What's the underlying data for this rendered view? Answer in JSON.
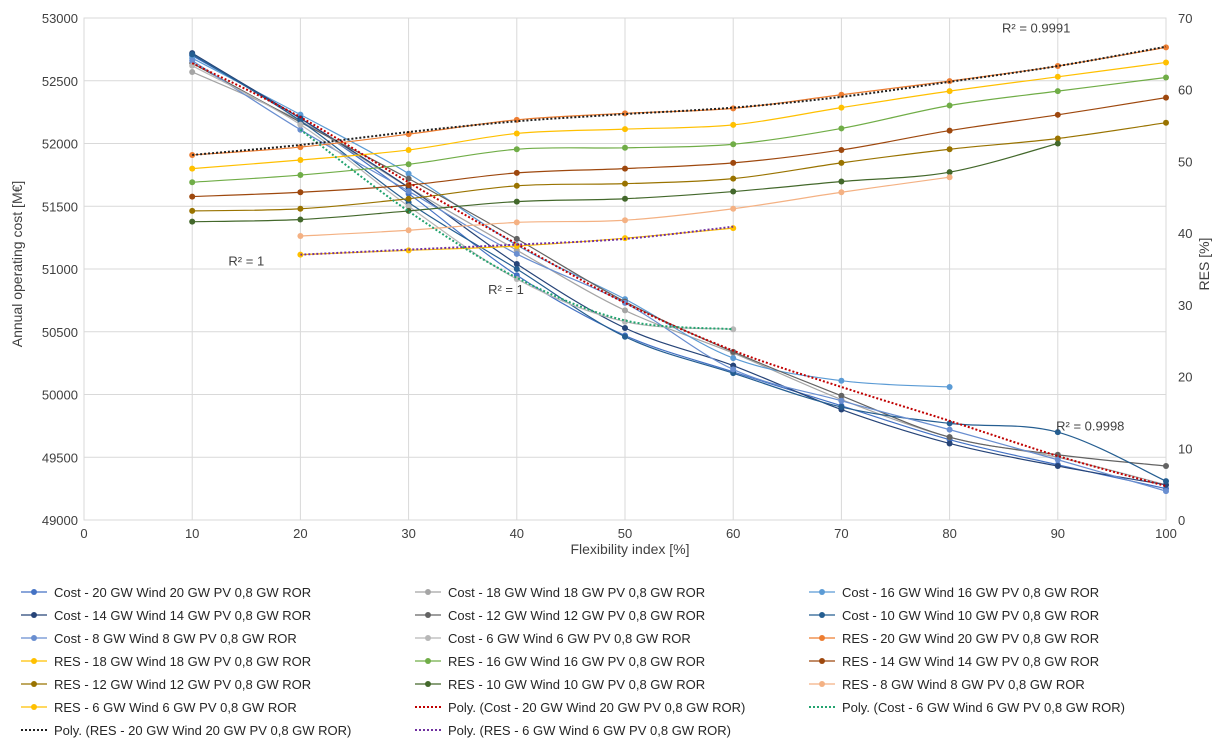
{
  "chart_data": {
    "type": "line",
    "title": "",
    "xlabel": "Flexibility index [%]",
    "ylabel": "Annual operating cost [M€]",
    "y2label": "RES [%]",
    "xlim": [
      0,
      100
    ],
    "ylim": [
      49000,
      53000
    ],
    "y2lim": [
      0,
      70
    ],
    "xticks": [
      "0",
      "10",
      "20",
      "30",
      "40",
      "50",
      "60",
      "70",
      "80",
      "90",
      "100"
    ],
    "yticks": [
      "49000",
      "49500",
      "50000",
      "50500",
      "51000",
      "51500",
      "52000",
      "52500",
      "53000"
    ],
    "y2ticks": [
      "0",
      "10",
      "20",
      "30",
      "40",
      "50",
      "60",
      "70"
    ],
    "grid": true,
    "legend_position": "bottom",
    "annotations": [
      {
        "text": "R² = 0.9991",
        "x": 88,
        "y2": 68
      },
      {
        "text": "R² = 1",
        "x": 15,
        "y2": 35.5
      },
      {
        "text": "R² = 1",
        "x": 39,
        "y2": 31.5
      },
      {
        "text": "R² = 0.9998",
        "x": 93,
        "y2": 12.5
      }
    ],
    "series": [
      {
        "name": "Cost - 20 GW Wind 20 GW PV 0,8 GW ROR",
        "axis": "left",
        "color": "#4472c4",
        "marker": true,
        "x": [
          10,
          20,
          30,
          40,
          50,
          60,
          70,
          80,
          90,
          100
        ],
        "y": [
          52700,
          52200,
          51600,
          50950,
          50470,
          50180,
          49910,
          49640,
          49440,
          49250
        ]
      },
      {
        "name": "Cost - 18 GW Wind 18 GW PV 0,8 GW ROR",
        "axis": "left",
        "color": "#a5a5a5",
        "marker": true,
        "x": [
          10,
          20,
          30,
          40,
          50,
          60,
          70,
          80,
          90,
          100
        ],
        "y": [
          52570,
          52180,
          51650,
          51150,
          50670,
          50330,
          49960,
          49660,
          49500,
          49280
        ]
      },
      {
        "name": "Cost - 16 GW Wind 16 GW PV 0,8 GW ROR",
        "axis": "left",
        "color": "#5b9bd5",
        "marker": true,
        "x": [
          10,
          20,
          30,
          40,
          50,
          60,
          70,
          80
        ],
        "y": [
          52680,
          52230,
          51760,
          51190,
          50760,
          50290,
          50110,
          50060
        ]
      },
      {
        "name": "Cost - 14 GW Wind 14 GW PV 0,8 GW ROR",
        "axis": "left",
        "color": "#264478",
        "marker": true,
        "x": [
          10,
          20,
          30,
          40,
          50,
          60,
          70,
          80,
          90,
          100
        ],
        "y": [
          52720,
          52200,
          51650,
          51040,
          50530,
          50230,
          49880,
          49610,
          49430,
          49280
        ]
      },
      {
        "name": "Cost - 12 GW Wind 12 GW PV 0,8 GW ROR",
        "axis": "left",
        "color": "#636363",
        "marker": true,
        "x": [
          10,
          20,
          30,
          40,
          50,
          60,
          70,
          80,
          90,
          100
        ],
        "y": [
          52640,
          52170,
          51720,
          51240,
          50740,
          50340,
          49990,
          49660,
          49520,
          49430
        ]
      },
      {
        "name": "Cost - 10 GW Wind 10 GW PV 0,8 GW ROR",
        "axis": "left",
        "color": "#255e91",
        "marker": true,
        "x": [
          10,
          20,
          30,
          40,
          50,
          60,
          70,
          80,
          90,
          100
        ],
        "y": [
          52710,
          52180,
          51530,
          51000,
          50460,
          50170,
          49900,
          49770,
          49700,
          49310
        ]
      },
      {
        "name": "Cost - 8 GW Wind 8 GW PV 0,8 GW ROR",
        "axis": "left",
        "color": "#698ed0",
        "marker": true,
        "x": [
          10,
          20,
          30,
          40,
          50,
          60,
          70,
          80,
          90,
          100
        ],
        "y": [
          52660,
          52110,
          51620,
          51120,
          50730,
          50200,
          49950,
          49720,
          49480,
          49230
        ]
      },
      {
        "name": "Cost - 6 GW Wind 6 GW PV 0,8 GW ROR",
        "axis": "left",
        "color": "#b7b7b7",
        "marker": true,
        "x": [
          10,
          20,
          30,
          40,
          50,
          60
        ],
        "y": [
          52620,
          52150,
          51500,
          50920,
          50580,
          50520
        ]
      },
      {
        "name": "RES - 20 GW Wind 20 GW PV 0,8 GW ROR",
        "axis": "right",
        "color": "#ed7d31",
        "marker": true,
        "x": [
          10,
          20,
          30,
          40,
          50,
          60,
          70,
          80,
          90,
          100
        ],
        "y": [
          50.9,
          52.0,
          53.8,
          55.8,
          56.7,
          57.4,
          59.3,
          61.2,
          63.3,
          65.9
        ]
      },
      {
        "name": "RES - 18 GW Wind 18 GW PV 0,8 GW ROR",
        "axis": "right",
        "color": "#ffc000",
        "marker": true,
        "x": [
          10,
          20,
          30,
          40,
          50,
          60,
          70,
          80,
          90,
          100
        ],
        "y": [
          49.0,
          50.2,
          51.6,
          53.9,
          54.5,
          55.1,
          57.5,
          59.8,
          61.8,
          63.8
        ]
      },
      {
        "name": "RES - 16 GW Wind 16 GW PV 0,8 GW ROR",
        "axis": "right",
        "color": "#70ad47",
        "marker": true,
        "x": [
          10,
          20,
          30,
          40,
          50,
          60,
          70,
          80,
          90,
          100
        ],
        "y": [
          47.1,
          48.1,
          49.6,
          51.7,
          51.9,
          52.4,
          54.6,
          57.8,
          59.8,
          61.7
        ]
      },
      {
        "name": "RES - 14 GW Wind 14 GW PV 0,8 GW ROR",
        "axis": "right",
        "color": "#9e480e",
        "marker": true,
        "x": [
          10,
          20,
          30,
          40,
          50,
          60,
          70,
          80,
          90,
          100
        ],
        "y": [
          45.1,
          45.7,
          46.7,
          48.4,
          49.0,
          49.8,
          51.6,
          54.3,
          56.5,
          58.9
        ]
      },
      {
        "name": "RES - 12 GW Wind 12 GW PV 0,8 GW ROR",
        "axis": "right",
        "color": "#997300",
        "marker": true,
        "x": [
          10,
          20,
          30,
          40,
          50,
          60,
          70,
          80,
          90,
          100
        ],
        "y": [
          43.1,
          43.4,
          44.8,
          46.6,
          46.9,
          47.6,
          49.8,
          51.7,
          53.2,
          55.4
        ]
      },
      {
        "name": "RES - 10 GW Wind 10 GW PV 0,8 GW ROR",
        "axis": "right",
        "color": "#43682b",
        "marker": true,
        "x": [
          10,
          20,
          30,
          40,
          50,
          60,
          70,
          80,
          90
        ],
        "y": [
          41.6,
          41.9,
          43.1,
          44.4,
          44.8,
          45.8,
          47.2,
          48.5,
          52.5
        ]
      },
      {
        "name": "RES - 8 GW Wind 8 GW PV 0,8 GW ROR",
        "axis": "right",
        "color": "#f4b183",
        "marker": true,
        "x": [
          20,
          30,
          40,
          50,
          60,
          70,
          80
        ],
        "y": [
          39.6,
          40.4,
          41.5,
          41.8,
          43.4,
          45.7,
          47.8
        ]
      },
      {
        "name": "RES - 6 GW Wind 6 GW PV 0,8 GW ROR",
        "axis": "right",
        "color": "#ffc000",
        "marker": true,
        "x": [
          20,
          30,
          40,
          50,
          60
        ],
        "y": [
          37.0,
          37.6,
          38.2,
          39.3,
          40.7
        ]
      },
      {
        "name": "Poly. (Cost - 20 GW Wind 20 GW PV 0,8 GW ROR)",
        "axis": "left",
        "color": "#c00000",
        "marker": false,
        "dotted": true,
        "x": [
          10,
          20,
          30,
          40,
          50,
          60,
          70,
          80,
          90,
          100
        ],
        "y": [
          52640,
          52210,
          51690,
          51200,
          50730,
          50350,
          50060,
          49790,
          49510,
          49270
        ]
      },
      {
        "name": "Poly. (Cost - 6 GW Wind 6 GW PV 0,8 GW ROR)",
        "axis": "left",
        "color": "#22a36f",
        "marker": false,
        "dotted": true,
        "x": [
          20,
          30,
          40,
          50,
          60
        ],
        "y": [
          52110,
          51460,
          50930,
          50590,
          50520
        ]
      },
      {
        "name": "Poly. (RES - 20 GW Wind 20 GW PV 0,8 GW ROR)",
        "axis": "right",
        "color": "#202020",
        "marker": false,
        "dotted": true,
        "x": [
          10,
          20,
          30,
          40,
          50,
          60,
          70,
          80,
          90,
          100
        ],
        "y": [
          50.9,
          52.3,
          54.1,
          55.6,
          56.6,
          57.5,
          59.0,
          61.1,
          63.3,
          66.0
        ]
      },
      {
        "name": "Poly. (RES - 6 GW Wind 6 GW PV 0,8 GW ROR)",
        "axis": "right",
        "color": "#7030a0",
        "marker": false,
        "dotted": true,
        "x": [
          20,
          30,
          40,
          50,
          60
        ],
        "y": [
          37.0,
          37.7,
          38.4,
          39.2,
          40.9
        ]
      }
    ]
  }
}
